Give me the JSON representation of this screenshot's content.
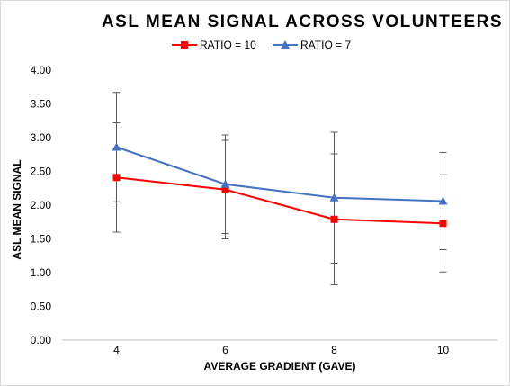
{
  "chart_data": {
    "type": "line",
    "title": "ASL MEAN SIGNAL ACROSS VOLUNTEERS",
    "xlabel": "AVERAGE  GRADIENT  (GAVE)",
    "ylabel": "ASL MEAN SIGNAL",
    "categories": [
      "4",
      "6",
      "8",
      "10"
    ],
    "ylim": [
      0,
      4
    ],
    "yticks": [
      "0.00",
      "0.50",
      "1.00",
      "1.50",
      "2.00",
      "2.50",
      "3.00",
      "3.50",
      "4.00"
    ],
    "grid": false,
    "legend_position": "top",
    "series": [
      {
        "name": "RATIO = 10",
        "color": "#ff0000",
        "marker": "square",
        "values": [
          2.41,
          2.23,
          1.79,
          1.73
        ],
        "error": [
          0.81,
          0.73,
          0.97,
          0.72
        ]
      },
      {
        "name": "RATIO = 7",
        "color": "#4472c4",
        "marker": "triangle",
        "values": [
          2.86,
          2.31,
          2.11,
          2.06
        ],
        "error": [
          0.81,
          0.73,
          0.97,
          0.72
        ]
      }
    ]
  }
}
